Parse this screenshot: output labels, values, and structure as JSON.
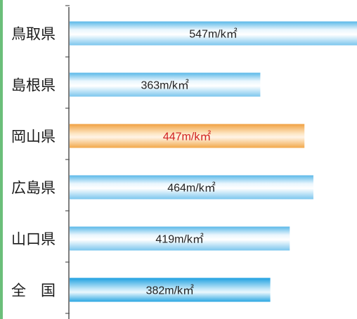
{
  "chart_data": {
    "type": "bar",
    "orientation": "horizontal",
    "categories": [
      "鳥取県",
      "島根県",
      "岡山県",
      "広島県",
      "山口県",
      "全　国"
    ],
    "values": [
      547,
      363,
      447,
      464,
      419,
      382
    ],
    "value_labels": [
      "547m/k㎡",
      "363m/k㎡",
      "447m/k㎡",
      "464m/k㎡",
      "419m/k㎡",
      "382m/k㎡"
    ],
    "unit": "m/k㎡",
    "xlim": [
      0,
      547
    ],
    "highlight_index": 2,
    "grid": false,
    "colors": {
      "bar_default": "#a8d8f0",
      "bar_highlight": "#f5b060",
      "bar_national": "#36aee8",
      "label_default": "#222222",
      "label_highlight": "#d12020",
      "axis": "#555555",
      "left_border": "#6bbf7a"
    }
  }
}
